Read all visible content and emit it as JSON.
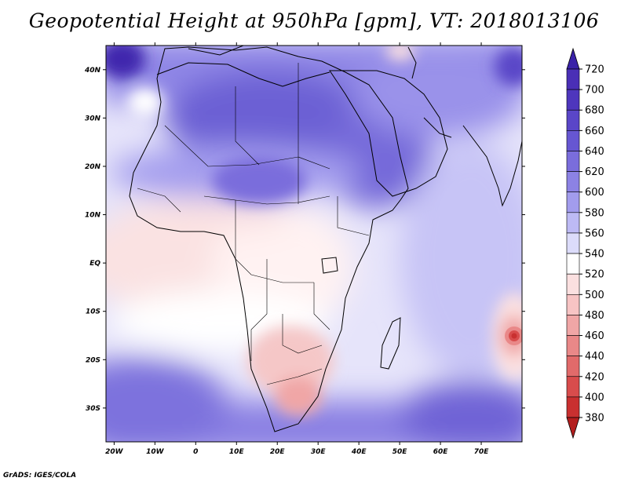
{
  "title": "Geopotential Height at 950hPa [gpm], VT: 2018013106",
  "footer": "GrADS: IGES/COLA",
  "map": {
    "lon_range": [
      -22,
      80
    ],
    "lat_range": [
      -37,
      45
    ],
    "lon_ticks": [
      {
        "v": -20,
        "label": "20W"
      },
      {
        "v": -10,
        "label": "10W"
      },
      {
        "v": 0,
        "label": "0"
      },
      {
        "v": 10,
        "label": "10E"
      },
      {
        "v": 20,
        "label": "20E"
      },
      {
        "v": 30,
        "label": "30E"
      },
      {
        "v": 40,
        "label": "40E"
      },
      {
        "v": 50,
        "label": "50E"
      },
      {
        "v": 60,
        "label": "60E"
      },
      {
        "v": 70,
        "label": "70E"
      }
    ],
    "lat_ticks": [
      {
        "v": 40,
        "label": "40N"
      },
      {
        "v": 30,
        "label": "30N"
      },
      {
        "v": 20,
        "label": "20N"
      },
      {
        "v": 10,
        "label": "10N"
      },
      {
        "v": 0,
        "label": "EQ"
      },
      {
        "v": -10,
        "label": "10S"
      },
      {
        "v": -20,
        "label": "20S"
      },
      {
        "v": -30,
        "label": "30S"
      }
    ]
  },
  "colorbar": {
    "levels": [
      380,
      400,
      420,
      440,
      460,
      480,
      500,
      520,
      540,
      560,
      580,
      600,
      620,
      640,
      660,
      680,
      700,
      720
    ],
    "labels": [
      "720",
      "700",
      "680",
      "660",
      "640",
      "620",
      "600",
      "580",
      "560",
      "540",
      "520",
      "500",
      "480",
      "460",
      "440",
      "420",
      "400",
      "380"
    ],
    "colors_top_down": [
      "#4a2fb6",
      "#4e36bd",
      "#5a46c8",
      "#6656d2",
      "#7a6ddc",
      "#8c82e4",
      "#a29ced",
      "#bdbaf4",
      "#dcdcfa",
      "#ffffff",
      "#fbe0e0",
      "#f7c4c4",
      "#f0a6a6",
      "#e98888",
      "#e16a6a",
      "#d84c4c",
      "#c93030"
    ],
    "arrow_top_color": "#3a22a8",
    "arrow_bottom_color": "#b41e1e"
  }
}
